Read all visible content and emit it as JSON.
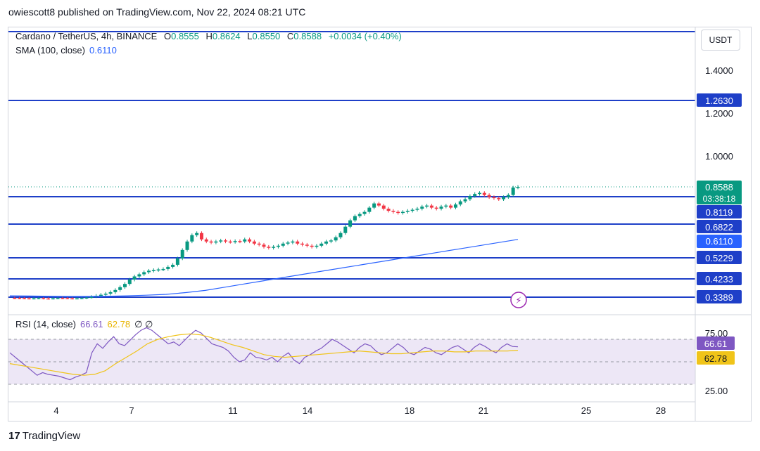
{
  "header": {
    "publisher": "owiescott8 published on TradingView.com, Nov 22, 2024 08:21 UTC"
  },
  "legend": {
    "symbol": "Cardano / TetherUS, 4h, BINANCE",
    "o_label": "O",
    "o_value": "0.8555",
    "h_label": "H",
    "h_value": "0.8624",
    "l_label": "L",
    "l_value": "0.8550",
    "c_label": "C",
    "c_value": "0.8588",
    "change": "+0.0034 (+0.40%)",
    "sma_label": "SMA (100, close)",
    "sma_value": "0.6110"
  },
  "rsi_legend": {
    "label": "RSI (14, close)",
    "rsi_value": "66.61",
    "ma_value": "62.78",
    "extra": "∅ ∅"
  },
  "currency_button": "USDT",
  "footer": {
    "brand": "TradingView",
    "logo": "17"
  },
  "colors": {
    "up": "#089981",
    "down": "#f23645",
    "level_line": "#1e3fc8",
    "sma": "#2962ff",
    "rsi": "#7e57c2",
    "rsi_ma": "#f0c419",
    "rsi_band": "#ede7f6"
  },
  "chart_data": [
    {
      "type": "candlestick",
      "title": "Cardano / TetherUS, 4h, BINANCE",
      "x_ticks": [
        "4",
        "7",
        "11",
        "14",
        "18",
        "21",
        "25",
        "28"
      ],
      "price_ticks": [
        "1.4000",
        "1.2000",
        "1.0000"
      ],
      "horizontal_levels": [
        "1.2630",
        "0.8119",
        "0.6822",
        "0.5229",
        "0.4233",
        "0.3389"
      ],
      "last_price": "0.8588",
      "countdown": "03:38:18",
      "sma_label_value": "0.6110",
      "ohlc_latest": {
        "open": 0.8555,
        "high": 0.8624,
        "low": 0.855,
        "close": 0.8588
      },
      "price_series": [
        0.333,
        0.332,
        0.331,
        0.33,
        0.329,
        0.33,
        0.331,
        0.329,
        0.328,
        0.33,
        0.332,
        0.331,
        0.33,
        0.329,
        0.33,
        0.332,
        0.336,
        0.34,
        0.345,
        0.35,
        0.355,
        0.362,
        0.372,
        0.385,
        0.4,
        0.42,
        0.435,
        0.445,
        0.455,
        0.462,
        0.465,
        0.468,
        0.47,
        0.48,
        0.49,
        0.52,
        0.56,
        0.6,
        0.63,
        0.64,
        0.61,
        0.6,
        0.595,
        0.6,
        0.605,
        0.6,
        0.598,
        0.602,
        0.6,
        0.61,
        0.6,
        0.59,
        0.585,
        0.575,
        0.57,
        0.575,
        0.58,
        0.59,
        0.595,
        0.6,
        0.59,
        0.585,
        0.58,
        0.575,
        0.58,
        0.59,
        0.6,
        0.605,
        0.62,
        0.64,
        0.67,
        0.7,
        0.72,
        0.73,
        0.74,
        0.76,
        0.78,
        0.77,
        0.755,
        0.745,
        0.74,
        0.735,
        0.74,
        0.745,
        0.75,
        0.755,
        0.765,
        0.77,
        0.76,
        0.755,
        0.765,
        0.77,
        0.76,
        0.775,
        0.79,
        0.8,
        0.815,
        0.825,
        0.83,
        0.82,
        0.81,
        0.805,
        0.8,
        0.81,
        0.82,
        0.8555,
        0.8588
      ],
      "sma_series": [
        0.345,
        0.344,
        0.343,
        0.342,
        0.342,
        0.343,
        0.345,
        0.348,
        0.352,
        0.36,
        0.37,
        0.385,
        0.4,
        0.415,
        0.43,
        0.445,
        0.46,
        0.475,
        0.49,
        0.505,
        0.52,
        0.535,
        0.55,
        0.565,
        0.58,
        0.595,
        0.61
      ],
      "ylim": [
        0.3,
        1.5
      ]
    },
    {
      "type": "line",
      "title": "RSI (14, close)",
      "y_ticks": [
        "75.00",
        "25.00"
      ],
      "rsi_value": "66.61",
      "rsi_ma_value": "62.78",
      "series": [
        {
          "name": "RSI",
          "values": [
            60,
            55,
            50,
            45,
            40,
            35,
            38,
            36,
            35,
            34,
            32,
            30,
            33,
            35,
            38,
            60,
            70,
            65,
            72,
            78,
            70,
            68,
            74,
            80,
            85,
            88,
            85,
            80,
            75,
            70,
            72,
            68,
            74,
            80,
            85,
            82,
            76,
            70,
            68,
            66,
            62,
            55,
            50,
            52,
            60,
            55,
            54,
            52,
            55,
            50,
            56,
            60,
            52,
            48,
            55,
            58,
            62,
            65,
            70,
            75,
            72,
            68,
            64,
            60,
            66,
            70,
            68,
            62,
            58,
            60,
            65,
            70,
            66,
            60,
            58,
            62,
            66,
            64,
            60,
            58,
            62,
            66,
            68,
            64,
            60,
            66,
            70,
            67,
            63,
            60,
            66,
            70,
            67,
            66.61
          ]
        },
        {
          "name": "RSI-based MA",
          "values": [
            48,
            46,
            44,
            42,
            40,
            38,
            36,
            35,
            36,
            40,
            48,
            55,
            62,
            70,
            75,
            78,
            80,
            81,
            80,
            77,
            73,
            69,
            66,
            62,
            58,
            56,
            55,
            56,
            57,
            58,
            59,
            60,
            61,
            62,
            61,
            60,
            59,
            59,
            60,
            61,
            62,
            62,
            61,
            61,
            62,
            62,
            62,
            62,
            62.78
          ]
        }
      ],
      "ylim": [
        0,
        100
      ]
    }
  ]
}
